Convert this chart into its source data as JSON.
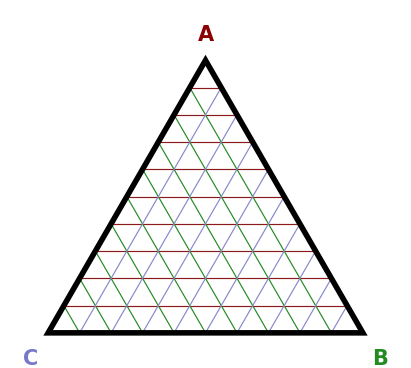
{
  "n_divisions": 10,
  "vertex_A": [
    0.5,
    0.866
  ],
  "vertex_B": [
    1.0,
    0.0
  ],
  "vertex_C": [
    0.0,
    0.0
  ],
  "label_A": "A",
  "label_B": "B",
  "label_C": "C",
  "label_A_color": "#8B0000",
  "label_B_color": "#228B22",
  "label_C_color": "#7777CC",
  "triangle_color": "black",
  "triangle_linewidth": 4.0,
  "grid_horizontal_color": "#8B1A1A",
  "grid_green_color": "#228B22",
  "grid_blue_color": "#8888CC",
  "grid_linewidth": 0.85,
  "label_fontsize": 15,
  "label_fontweight": "bold",
  "figsize": [
    4.11,
    3.68
  ],
  "dpi": 100
}
